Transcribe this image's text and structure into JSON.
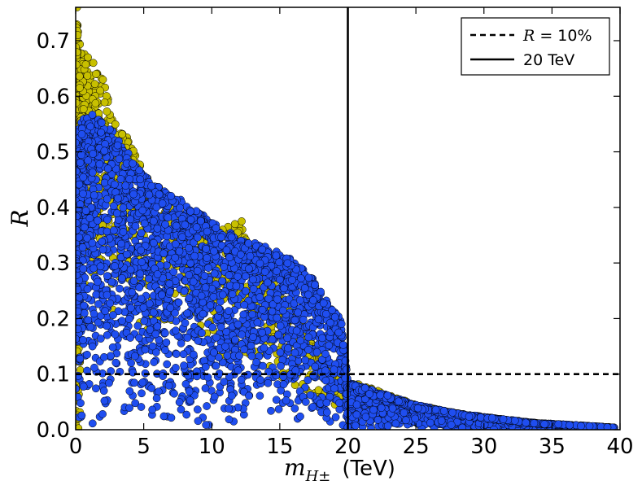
{
  "chart_data": {
    "type": "scatter",
    "title": "",
    "xlabel": "m_{H±} (TeV)",
    "xlabel_main": "m",
    "xlabel_sub": "H±",
    "xlabel_unit": "(TeV)",
    "ylabel": "R",
    "xlim": [
      0,
      40
    ],
    "ylim": [
      0,
      0.76
    ],
    "xticks": [
      0,
      5,
      10,
      15,
      20,
      25,
      30,
      35,
      40
    ],
    "xtick_labels": [
      "0",
      "5",
      "10",
      "15",
      "20",
      "25",
      "30",
      "35",
      "40"
    ],
    "yticks": [
      0.0,
      0.1,
      0.2,
      0.3,
      0.4,
      0.5,
      0.6,
      0.7
    ],
    "ytick_labels": [
      "0.0",
      "0.1",
      "0.2",
      "0.3",
      "0.4",
      "0.5",
      "0.6",
      "0.7"
    ],
    "grid": false,
    "series": [
      {
        "name": "yellow points",
        "color": "#c8c000",
        "envelope": [
          [
            0.05,
            0.76
          ],
          [
            0.2,
            0.71
          ],
          [
            0.8,
            0.67
          ],
          [
            1.3,
            0.65
          ],
          [
            2.0,
            0.63
          ],
          [
            2.5,
            0.59
          ],
          [
            3.0,
            0.55
          ],
          [
            4.0,
            0.52
          ],
          [
            6.0,
            0.42
          ],
          [
            8.5,
            0.38
          ],
          [
            10.8,
            0.36
          ],
          [
            12.2,
            0.37
          ],
          [
            13.0,
            0.33
          ],
          [
            15.0,
            0.25
          ],
          [
            18.0,
            0.14
          ],
          [
            20.0,
            0.09
          ],
          [
            25.0,
            0.045
          ],
          [
            30.0,
            0.02
          ],
          [
            35.0,
            0.01
          ],
          [
            39.0,
            0.005
          ]
        ],
        "highlight_points": [
          [
            0.1,
            0.76
          ],
          [
            0.15,
            0.71
          ],
          [
            0.9,
            0.67
          ],
          [
            1.3,
            0.66
          ],
          [
            1.5,
            0.64
          ],
          [
            2.0,
            0.63
          ],
          [
            1.8,
            0.61
          ],
          [
            0.3,
            0.62
          ],
          [
            0.3,
            0.615
          ],
          [
            12.2,
            0.375
          ],
          [
            11.7,
            0.37
          ],
          [
            11.2,
            0.365
          ],
          [
            10.8,
            0.36
          ],
          [
            11.9,
            0.355
          ],
          [
            8.3,
            0.37
          ],
          [
            8.6,
            0.355
          ],
          [
            9.0,
            0.36
          ]
        ]
      },
      {
        "name": "blue points",
        "color": "#1f4ef0",
        "envelope": [
          [
            0.1,
            0.54
          ],
          [
            0.6,
            0.56
          ],
          [
            1.2,
            0.57
          ],
          [
            1.8,
            0.56
          ],
          [
            2.5,
            0.545
          ],
          [
            3.5,
            0.51
          ],
          [
            5.0,
            0.46
          ],
          [
            6.5,
            0.43
          ],
          [
            8.0,
            0.41
          ],
          [
            10.0,
            0.375
          ],
          [
            12.0,
            0.345
          ],
          [
            14.0,
            0.33
          ],
          [
            16.0,
            0.305
          ],
          [
            17.5,
            0.27
          ],
          [
            18.5,
            0.23
          ],
          [
            19.5,
            0.2
          ],
          [
            20.0,
            0.085
          ],
          [
            22.0,
            0.07
          ],
          [
            25.0,
            0.045
          ],
          [
            28.0,
            0.03
          ],
          [
            31.0,
            0.02
          ],
          [
            34.0,
            0.012
          ],
          [
            37.0,
            0.008
          ],
          [
            39.5,
            0.004
          ]
        ]
      }
    ],
    "reference_lines": [
      {
        "orientation": "horizontal",
        "value": 0.1,
        "style": "dashed",
        "label_prefix": "R",
        "label_suffix": " = 10%"
      },
      {
        "orientation": "vertical",
        "value": 20,
        "style": "solid",
        "label": "20 TeV"
      }
    ],
    "legend_position": "top-right"
  }
}
